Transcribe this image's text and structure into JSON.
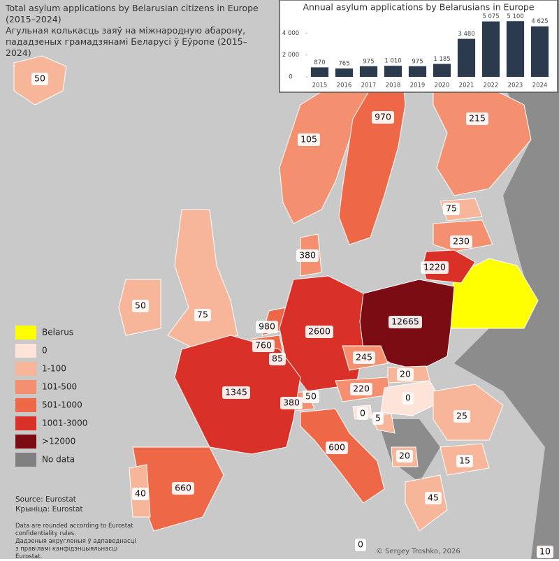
{
  "title": "Total asylum applications by Belarusian citizens in Europe (2015–2024)",
  "subtitle": "Агульная колькасць заяў на міжнародную абарону, пададзеных грамадзянамі Беларусі ў Еўропе (2015–2024)",
  "legend": [
    {
      "label": "Belarus",
      "color": "#ffff00"
    },
    {
      "label": "0",
      "color": "#fde3d8"
    },
    {
      "label": "1-100",
      "color": "#f7b59a"
    },
    {
      "label": "101-500",
      "color": "#f4906f"
    },
    {
      "label": "501-1000",
      "color": "#ee6747"
    },
    {
      "label": "1001-3000",
      "color": "#d93127"
    },
    {
      "label": ">12000",
      "color": "#7b0c13"
    },
    {
      "label": "No data",
      "color": "#808080"
    }
  ],
  "regions": [
    {
      "value": 50,
      "color": "#f7b59a"
    },
    {
      "value": 105,
      "color": "#f4906f"
    },
    {
      "value": 970,
      "color": "#ee6747"
    },
    {
      "value": 215,
      "color": "#f4906f"
    },
    {
      "value": 75,
      "color": "#f7b59a"
    },
    {
      "value": 230,
      "color": "#f4906f"
    },
    {
      "value": 1220,
      "color": "#d93127"
    },
    {
      "value": 380,
      "color": "#f4906f"
    },
    {
      "value": 50,
      "color": "#f7b59a"
    },
    {
      "value": 75,
      "color": "#f7b59a"
    },
    {
      "value": 980,
      "color": "#ee6747"
    },
    {
      "value": 760,
      "color": "#ee6747"
    },
    {
      "value": 85,
      "color": "#f7b59a"
    },
    {
      "value": 2600,
      "color": "#d93127"
    },
    {
      "value": 12665,
      "color": "#7b0c13"
    },
    {
      "value": 245,
      "color": "#f4906f"
    },
    {
      "value": 20,
      "color": "#f7b59a"
    },
    {
      "value": 220,
      "color": "#f4906f"
    },
    {
      "value": 0,
      "color": "#fde3d8"
    },
    {
      "value": 380,
      "color": "#f4906f"
    },
    {
      "value": 50,
      "color": "#f7b59a"
    },
    {
      "value": 0,
      "color": "#fde3d8"
    },
    {
      "value": 5,
      "color": "#f7b59a"
    },
    {
      "value": 25,
      "color": "#f7b59a"
    },
    {
      "value": 1345,
      "color": "#d93127"
    },
    {
      "value": 600,
      "color": "#ee6747"
    },
    {
      "value": 15,
      "color": "#f7b59a"
    },
    {
      "value": 20,
      "color": "#f7b59a"
    },
    {
      "value": 660,
      "color": "#ee6747"
    },
    {
      "value": 40,
      "color": "#f7b59a"
    },
    {
      "value": 45,
      "color": "#f7b59a"
    },
    {
      "value": 0,
      "color": "#fde3d8"
    },
    {
      "value": 10,
      "color": "#f7b59a"
    }
  ],
  "source": "Source: Eurostat",
  "source_by": "Крыніца: Eurostat",
  "note": "Data are rounded according to Eurostat confidentiality rules.",
  "note_by": "Дадзеныя акругленыя ў адпаведнасці з правіламі канфідэнцыяльнасці Eurostat.",
  "credit": "© Sergey Troshko, 2026",
  "chart_data": {
    "type": "bar",
    "title": "Annual asylum applications by Belarusians in Europe",
    "categories": [
      "2015",
      "2016",
      "2017",
      "2018",
      "2019",
      "2020",
      "2021",
      "2022",
      "2023",
      "2024"
    ],
    "values": [
      870,
      765,
      975,
      1010,
      975,
      1185,
      3480,
      5075,
      5100,
      4625
    ],
    "value_labels": [
      "870",
      "765",
      "975",
      "1 010",
      "975",
      "1 185",
      "3 480",
      "5 075",
      "5 100",
      "4 625"
    ],
    "color": "#2b3a4d",
    "ylim": [
      0,
      5500
    ],
    "yticks": [
      0,
      {
        "value": 2000,
        "label": "2 000"
      },
      {
        "value": 4000,
        "label": "4 000"
      }
    ],
    "grid": false
  }
}
